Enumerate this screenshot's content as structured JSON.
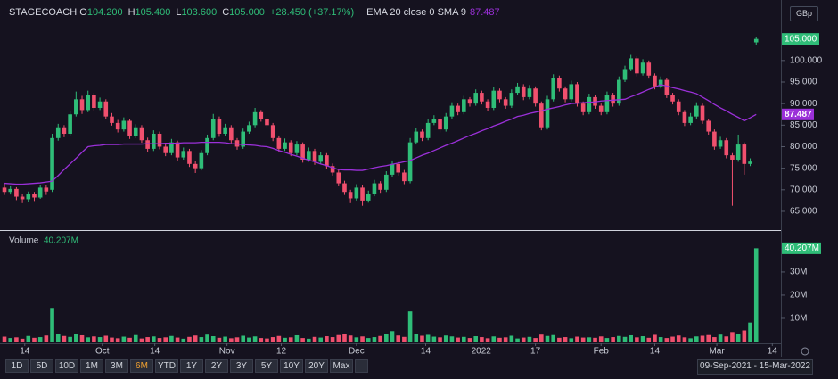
{
  "header": {
    "symbol": "STAGECOACH",
    "fields": [
      {
        "key": "O",
        "value": "104.200"
      },
      {
        "key": "H",
        "value": "105.400"
      },
      {
        "key": "L",
        "value": "103.600"
      },
      {
        "key": "C",
        "value": "105.000"
      }
    ],
    "change": "+28.450 (+37.17%)",
    "currency": "GBp"
  },
  "toolbar": {
    "ranges": [
      "1D",
      "5D",
      "10D",
      "1M",
      "3M",
      "6M",
      "YTD",
      "1Y",
      "2Y",
      "3Y",
      "5Y",
      "10Y",
      "20Y",
      "Max"
    ],
    "active": "6M",
    "date_range": "09-Sep-2021 - 15-Mar-2022"
  },
  "chart_data": [
    {
      "type": "candlestick",
      "up_color": "#2fbd78",
      "down_color": "#f0506e",
      "last_label": "105.000",
      "ohlc": [
        [
          70.5,
          71.4,
          68.8,
          69.5
        ],
        [
          69.5,
          70.8,
          68.9,
          70.2
        ],
        [
          70.2,
          70.6,
          67.6,
          68.4
        ],
        [
          68.4,
          69.1,
          66.9,
          67.8
        ],
        [
          67.8,
          69.6,
          67.2,
          69.0
        ],
        [
          69.0,
          69.5,
          67.4,
          68.2
        ],
        [
          68.2,
          71.2,
          67.9,
          70.5
        ],
        [
          70.5,
          71.0,
          68.8,
          69.6
        ],
        [
          70.0,
          83.0,
          69.5,
          82.0
        ],
        [
          82.0,
          85.3,
          81.4,
          84.5
        ],
        [
          84.5,
          85.0,
          82.2,
          83.0
        ],
        [
          83.0,
          88.4,
          82.6,
          87.5
        ],
        [
          87.5,
          92.8,
          87.0,
          91.0
        ],
        [
          91.0,
          91.8,
          87.6,
          88.5
        ],
        [
          88.5,
          93.0,
          88.0,
          92.0
        ],
        [
          92.0,
          92.5,
          88.2,
          89.0
        ],
        [
          89.0,
          91.4,
          88.5,
          90.5
        ],
        [
          90.5,
          91.0,
          86.4,
          87.0
        ],
        [
          87.0,
          87.8,
          84.9,
          85.5
        ],
        [
          85.5,
          86.2,
          83.3,
          84.0
        ],
        [
          84.0,
          86.8,
          83.5,
          86.0
        ],
        [
          86.0,
          86.4,
          81.8,
          82.5
        ],
        [
          82.5,
          85.2,
          82.0,
          84.5
        ],
        [
          84.5,
          85.0,
          80.9,
          81.5
        ],
        [
          81.5,
          82.1,
          78.8,
          79.5
        ],
        [
          79.5,
          83.8,
          79.0,
          83.0
        ],
        [
          83.0,
          83.5,
          79.4,
          80.0
        ],
        [
          80.0,
          80.6,
          77.8,
          78.5
        ],
        [
          78.5,
          81.8,
          78.0,
          81.0
        ],
        [
          81.0,
          81.4,
          76.8,
          77.5
        ],
        [
          77.5,
          79.8,
          77.0,
          79.0
        ],
        [
          79.0,
          79.5,
          75.3,
          76.0
        ],
        [
          76.0,
          76.6,
          73.9,
          75.0
        ],
        [
          75.0,
          79.2,
          74.5,
          78.5
        ],
        [
          78.5,
          82.8,
          78.0,
          82.0
        ],
        [
          82.0,
          87.6,
          81.5,
          86.5
        ],
        [
          86.5,
          87.0,
          82.3,
          83.0
        ],
        [
          83.0,
          85.3,
          82.5,
          84.5
        ],
        [
          84.5,
          85.0,
          80.8,
          81.5
        ],
        [
          81.5,
          82.0,
          79.3,
          80.0
        ],
        [
          80.0,
          84.2,
          79.5,
          83.5
        ],
        [
          83.5,
          85.8,
          83.0,
          85.0
        ],
        [
          85.0,
          89.0,
          84.5,
          88.0
        ],
        [
          88.0,
          88.5,
          85.8,
          86.5
        ],
        [
          86.5,
          87.0,
          84.3,
          85.0
        ],
        [
          85.0,
          85.5,
          81.3,
          82.0
        ],
        [
          82.0,
          82.6,
          78.8,
          79.5
        ],
        [
          79.5,
          81.9,
          79.0,
          81.0
        ],
        [
          81.0,
          81.5,
          77.8,
          78.5
        ],
        [
          78.5,
          81.3,
          78.0,
          80.5
        ],
        [
          80.5,
          81.0,
          76.3,
          77.0
        ],
        [
          77.0,
          79.8,
          76.5,
          79.0
        ],
        [
          79.0,
          79.5,
          75.8,
          76.5
        ],
        [
          76.5,
          78.7,
          76.0,
          78.0
        ],
        [
          78.0,
          78.5,
          74.8,
          75.5
        ],
        [
          75.5,
          76.1,
          73.3,
          74.0
        ],
        [
          74.0,
          74.6,
          70.8,
          71.5
        ],
        [
          71.5,
          72.1,
          68.8,
          69.5
        ],
        [
          69.5,
          70.0,
          66.9,
          68.0
        ],
        [
          68.0,
          71.3,
          67.5,
          70.5
        ],
        [
          70.5,
          71.0,
          66.3,
          67.5
        ],
        [
          67.5,
          69.8,
          67.0,
          69.0
        ],
        [
          69.0,
          72.3,
          68.5,
          71.5
        ],
        [
          71.5,
          72.0,
          69.3,
          70.0
        ],
        [
          70.0,
          74.3,
          69.5,
          73.5
        ],
        [
          73.5,
          76.8,
          73.0,
          76.0
        ],
        [
          76.0,
          76.5,
          73.3,
          74.0
        ],
        [
          74.0,
          74.6,
          71.3,
          72.0
        ],
        [
          72.0,
          82.0,
          71.5,
          81.0
        ],
        [
          81.0,
          84.3,
          80.5,
          83.5
        ],
        [
          83.5,
          84.0,
          81.3,
          82.0
        ],
        [
          82.0,
          86.3,
          81.5,
          85.5
        ],
        [
          85.5,
          87.3,
          85.0,
          86.5
        ],
        [
          86.5,
          87.0,
          83.3,
          84.0
        ],
        [
          84.0,
          87.8,
          83.5,
          87.0
        ],
        [
          87.0,
          90.3,
          86.5,
          89.5
        ],
        [
          89.5,
          90.0,
          87.3,
          88.0
        ],
        [
          88.0,
          91.8,
          87.5,
          91.0
        ],
        [
          91.0,
          91.5,
          89.3,
          90.0
        ],
        [
          90.0,
          93.3,
          89.5,
          92.5
        ],
        [
          92.5,
          93.0,
          89.8,
          90.5
        ],
        [
          90.5,
          91.0,
          88.3,
          89.0
        ],
        [
          89.0,
          93.8,
          88.5,
          93.0
        ],
        [
          93.0,
          93.5,
          90.3,
          91.0
        ],
        [
          91.0,
          91.5,
          88.8,
          89.5
        ],
        [
          89.5,
          93.3,
          89.0,
          92.5
        ],
        [
          92.5,
          94.8,
          92.0,
          94.0
        ],
        [
          94.0,
          94.5,
          90.8,
          91.5
        ],
        [
          91.5,
          94.3,
          91.0,
          93.5
        ],
        [
          93.5,
          94.0,
          89.3,
          90.0
        ],
        [
          90.0,
          90.5,
          83.8,
          84.5
        ],
        [
          84.5,
          91.8,
          84.0,
          91.0
        ],
        [
          91.0,
          96.8,
          90.5,
          96.0
        ],
        [
          96.0,
          96.5,
          92.8,
          93.5
        ],
        [
          93.5,
          94.0,
          90.3,
          91.0
        ],
        [
          91.0,
          95.3,
          90.5,
          94.5
        ],
        [
          94.5,
          95.0,
          89.3,
          90.0
        ],
        [
          90.0,
          90.5,
          87.3,
          88.0
        ],
        [
          88.0,
          92.3,
          87.5,
          91.5
        ],
        [
          91.5,
          92.0,
          88.8,
          89.5
        ],
        [
          89.5,
          90.0,
          87.3,
          88.0
        ],
        [
          88.0,
          92.8,
          87.5,
          92.0
        ],
        [
          92.0,
          92.5,
          89.3,
          90.0
        ],
        [
          90.0,
          96.3,
          89.5,
          95.5
        ],
        [
          95.5,
          98.8,
          95.0,
          98.0
        ],
        [
          98.0,
          101.3,
          97.5,
          100.5
        ],
        [
          100.5,
          101.0,
          96.3,
          97.0
        ],
        [
          97.0,
          100.3,
          96.5,
          99.5
        ],
        [
          99.5,
          100.0,
          95.8,
          96.5
        ],
        [
          96.5,
          97.0,
          93.3,
          94.0
        ],
        [
          94.0,
          96.3,
          93.5,
          95.5
        ],
        [
          95.5,
          96.0,
          91.3,
          92.0
        ],
        [
          92.0,
          92.5,
          89.8,
          90.5
        ],
        [
          90.5,
          91.0,
          87.3,
          88.0
        ],
        [
          88.0,
          88.5,
          84.8,
          85.5
        ],
        [
          85.5,
          87.8,
          85.0,
          87.0
        ],
        [
          87.0,
          90.3,
          86.5,
          89.5
        ],
        [
          89.5,
          90.0,
          85.3,
          86.0
        ],
        [
          86.0,
          86.5,
          82.8,
          83.5
        ],
        [
          83.5,
          84.0,
          79.3,
          80.0
        ],
        [
          80.0,
          82.3,
          79.5,
          81.5
        ],
        [
          81.5,
          82.0,
          77.3,
          78.0
        ],
        [
          78.0,
          78.5,
          66.3,
          77.0
        ],
        [
          77.0,
          82.8,
          76.5,
          80.5
        ],
        [
          80.5,
          81.0,
          73.5,
          76.0
        ],
        [
          76.0,
          77.3,
          75.5,
          76.55
        ],
        [
          104.2,
          105.4,
          103.6,
          105.0
        ]
      ],
      "series": [
        {
          "name": "EMA 20 close 0 SMA 9",
          "color": "#9b30d9",
          "last_label": "87.487",
          "values": [
            71.5,
            71.4,
            71.3,
            71.3,
            71.4,
            71.5,
            71.6,
            71.8,
            72.0,
            73.3,
            74.7,
            76.0,
            77.3,
            78.7,
            80.0,
            80.2,
            80.3,
            80.5,
            80.5,
            80.5,
            80.6,
            80.6,
            80.6,
            80.6,
            80.7,
            80.7,
            80.7,
            80.8,
            80.8,
            80.8,
            80.9,
            80.9,
            80.9,
            81.0,
            81.0,
            81.0,
            81.0,
            80.9,
            80.7,
            80.6,
            80.5,
            80.4,
            80.3,
            80.1,
            80.0,
            79.6,
            79.1,
            78.7,
            78.2,
            77.8,
            77.3,
            76.9,
            76.5,
            76.0,
            75.6,
            75.1,
            74.7,
            74.6,
            74.6,
            74.5,
            74.5,
            74.8,
            75.1,
            75.4,
            75.6,
            75.9,
            76.2,
            76.5,
            76.8,
            77.4,
            78.0,
            78.5,
            79.1,
            79.7,
            80.3,
            80.8,
            81.4,
            82.0,
            82.6,
            83.1,
            83.7,
            84.2,
            84.8,
            85.3,
            85.9,
            86.4,
            87.0,
            87.3,
            87.7,
            88.0,
            88.3,
            88.7,
            89.0,
            89.3,
            89.7,
            90.0,
            90.1,
            90.2,
            90.3,
            90.4,
            90.6,
            90.7,
            90.8,
            90.9,
            91.0,
            91.6,
            92.1,
            92.7,
            93.3,
            93.8,
            94.4,
            94.1,
            93.7,
            93.4,
            93.0,
            92.7,
            92.3,
            91.5,
            90.7,
            89.8,
            89.0,
            88.3,
            87.5,
            86.8,
            86.0,
            86.7,
            87.487
          ]
        }
      ],
      "xlim": [
        -0.75,
        130
      ],
      "xticks": [
        {
          "value": 3.4,
          "label": "14"
        },
        {
          "value": 16.4,
          "label": "Oct"
        },
        {
          "value": 25.2,
          "label": "14"
        },
        {
          "value": 37.3,
          "label": "Nov"
        },
        {
          "value": 46.4,
          "label": "12"
        },
        {
          "value": 59,
          "label": "Dec"
        },
        {
          "value": 70.6,
          "label": "14"
        },
        {
          "value": 79.9,
          "label": "2022"
        },
        {
          "value": 89,
          "label": "17"
        },
        {
          "value": 100,
          "label": "Feb"
        },
        {
          "value": 109,
          "label": "14"
        },
        {
          "value": 119.4,
          "label": "Mar"
        },
        {
          "value": 128.7,
          "label": "14"
        }
      ],
      "ylim": [
        60.65,
        113.0
      ],
      "yticks": [
        {
          "value": 65,
          "label": "65.000"
        },
        {
          "value": 70,
          "label": "70.000"
        },
        {
          "value": 75,
          "label": "75.000"
        },
        {
          "value": 80,
          "label": "80.000"
        },
        {
          "value": 85,
          "label": "85.000"
        },
        {
          "value": 90,
          "label": "90.000"
        },
        {
          "value": 95,
          "label": "95.000"
        },
        {
          "value": 100,
          "label": "100.000"
        }
      ]
    },
    {
      "type": "bar",
      "title": "Volume",
      "last_label": "40.207M",
      "up_color": "#2fbd78",
      "down_color": "#f0506e",
      "values": [
        2.1,
        1.5,
        1.8,
        1.2,
        2.4,
        1.6,
        1.9,
        2.6,
        14.5,
        3.2,
        2.4,
        2.0,
        3.1,
        2.7,
        1.8,
        2.2,
        1.9,
        2.5,
        1.7,
        1.4,
        2.1,
        1.6,
        2.8,
        1.3,
        1.9,
        2.2,
        1.5,
        1.8,
        2.4,
        1.7,
        1.2,
        2.0,
        2.6,
        1.9,
        3.0,
        2.3,
        1.6,
        2.1,
        1.4,
        1.8,
        2.5,
        1.7,
        2.2,
        1.5,
        1.3,
        1.9,
        2.4,
        1.6,
        1.8,
        2.7,
        1.5,
        1.2,
        2.0,
        1.7,
        2.3,
        1.9,
        2.8,
        3.2,
        2.6,
        1.8,
        2.2,
        1.5,
        1.9,
        2.4,
        3.1,
        4.5,
        2.6,
        2.0,
        13.0,
        3.4,
        2.5,
        2.9,
        2.1,
        1.8,
        2.6,
        2.2,
        1.7,
        2.0,
        1.5,
        2.3,
        1.9,
        1.4,
        2.2,
        1.6,
        1.8,
        2.5,
        1.3,
        1.7,
        2.0,
        1.5,
        3.0,
        2.4,
        2.8,
        1.6,
        1.9,
        1.4,
        2.1,
        1.7,
        1.8,
        1.6,
        2.2,
        1.5,
        1.9,
        2.4,
        2.0,
        2.7,
        1.8,
        2.3,
        1.6,
        2.9,
        1.9,
        1.5,
        2.1,
        2.6,
        1.8,
        1.4,
        2.2,
        2.5,
        2.8,
        1.9,
        3.0,
        2.2,
        4.1,
        3.3,
        4.8,
        8.2,
        40.207
      ],
      "ylim": [
        0,
        46.5
      ],
      "yticks": [
        {
          "value": 10,
          "label": "10M"
        },
        {
          "value": 20,
          "label": "20M"
        },
        {
          "value": 30,
          "label": "30M"
        }
      ]
    }
  ]
}
